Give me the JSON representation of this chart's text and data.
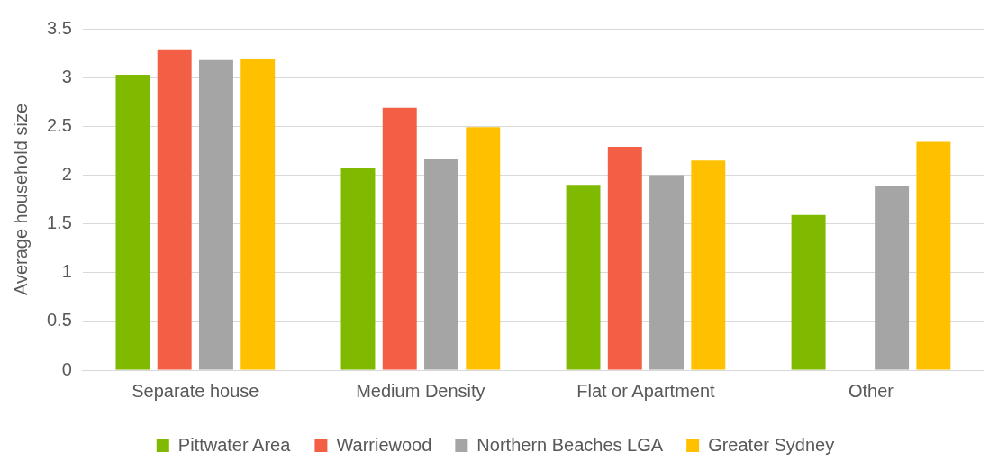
{
  "chart_data": {
    "type": "bar",
    "ylabel": "Average household size",
    "categories": [
      "Separate house",
      "Medium Density",
      "Flat or Apartment",
      "Other"
    ],
    "series": [
      {
        "name": "Pittwater Area",
        "color": "#7fba00",
        "values": [
          3.03,
          2.07,
          1.9,
          1.59
        ]
      },
      {
        "name": "Warriewood",
        "color": "#f25f45",
        "values": [
          3.29,
          2.69,
          2.29,
          null
        ]
      },
      {
        "name": "Northern Beaches LGA",
        "color": "#a5a5a5",
        "values": [
          3.18,
          2.16,
          2.0,
          1.89
        ]
      },
      {
        "name": "Greater Sydney",
        "color": "#ffc000",
        "values": [
          3.19,
          2.49,
          2.15,
          2.34
        ]
      }
    ],
    "ylim": [
      0,
      3.5
    ],
    "yticks": [
      0,
      0.5,
      1,
      1.5,
      2,
      2.5,
      3,
      3.5
    ],
    "grid": "y",
    "legend": "bottom"
  }
}
